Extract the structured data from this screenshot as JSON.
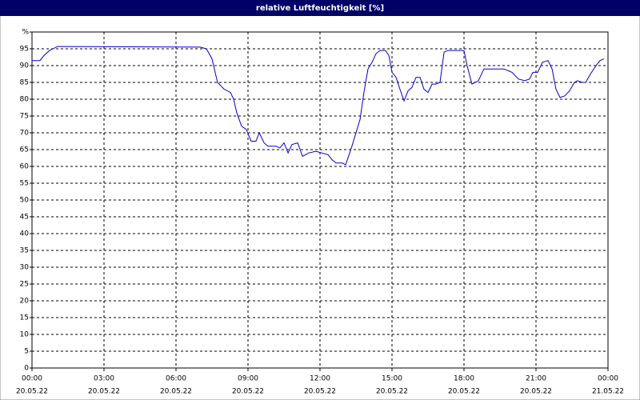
{
  "chart_data": {
    "type": "line",
    "title": "relative Luftfeuchtigkeit [%]",
    "x": [
      0,
      0.33,
      0.5,
      0.73,
      1.07,
      7,
      7.27,
      7.5,
      7.73,
      8,
      8.27,
      8.4,
      8.53,
      8.73,
      8.93,
      9.13,
      9.33,
      9.47,
      9.67,
      9.83,
      10.17,
      10.33,
      10.5,
      10.67,
      10.83,
      11.07,
      11.27,
      11.53,
      11.83,
      12.07,
      12.33,
      12.5,
      12.67,
      12.93,
      13.07,
      13.33,
      13.67,
      13.83,
      14,
      14.17,
      14.33,
      14.5,
      14.73,
      14.87,
      15,
      15.17,
      15.33,
      15.5,
      15.67,
      15.83,
      16,
      16.17,
      16.33,
      16.5,
      16.67,
      16.83,
      17,
      17.17,
      17.33,
      18,
      18.13,
      18.33,
      18.6,
      18.83,
      19.67,
      20,
      20.27,
      20.53,
      20.73,
      20.87,
      21.07,
      21.27,
      21.5,
      21.67,
      21.83,
      22,
      22.2,
      22.4,
      22.6,
      22.73,
      22.93,
      23.07,
      23.27,
      23.5,
      23.67,
      23.83
    ],
    "values": [
      91.5,
      91.5,
      93,
      94.5,
      95.7,
      95.5,
      95,
      92,
      85,
      83,
      82,
      80,
      76,
      72,
      71,
      67.5,
      67.5,
      70,
      67,
      66,
      66,
      65.5,
      67,
      64,
      66.5,
      67,
      63,
      64,
      64.5,
      64,
      63.5,
      62,
      61,
      61,
      60.5,
      66,
      74,
      82,
      89,
      91,
      93.5,
      94.5,
      94.5,
      93,
      88,
      86.5,
      83,
      79.5,
      82.5,
      83.5,
      86.5,
      86.5,
      83,
      82,
      84.5,
      84.5,
      85,
      94,
      94.5,
      94.5,
      90,
      84.5,
      85.5,
      89,
      89,
      88,
      86,
      85.5,
      86,
      88,
      88,
      91,
      91.5,
      89,
      83,
      80.5,
      81,
      82.5,
      85,
      85.5,
      85,
      85,
      87.5,
      90,
      91.5,
      92
    ],
    "color": "#0000cc",
    "xlim": [
      0,
      24
    ],
    "xticks": [
      {
        "value": 0,
        "label": "00:00"
      },
      {
        "value": 3,
        "label": "03:00"
      },
      {
        "value": 6,
        "label": "06:00"
      },
      {
        "value": 9,
        "label": "09:00"
      },
      {
        "value": 12,
        "label": "12:00"
      },
      {
        "value": 15,
        "label": "15:00"
      },
      {
        "value": 18,
        "label": "18:00"
      },
      {
        "value": 21,
        "label": "21:00"
      },
      {
        "value": 24,
        "label": "00:00"
      }
    ],
    "xtick_dates": [
      "20.05.22",
      "20.05.22",
      "20.05.22",
      "20.05.22",
      "20.05.22",
      "20.05.22",
      "20.05.22",
      "20.05.22",
      "21.05.22"
    ],
    "ylim": [
      0,
      100
    ],
    "yticks": [
      0,
      5,
      10,
      15,
      20,
      25,
      30,
      35,
      40,
      45,
      50,
      55,
      60,
      65,
      70,
      75,
      80,
      85,
      90,
      95,
      {
        "value": 100,
        "label": "%"
      }
    ],
    "grid": true
  }
}
